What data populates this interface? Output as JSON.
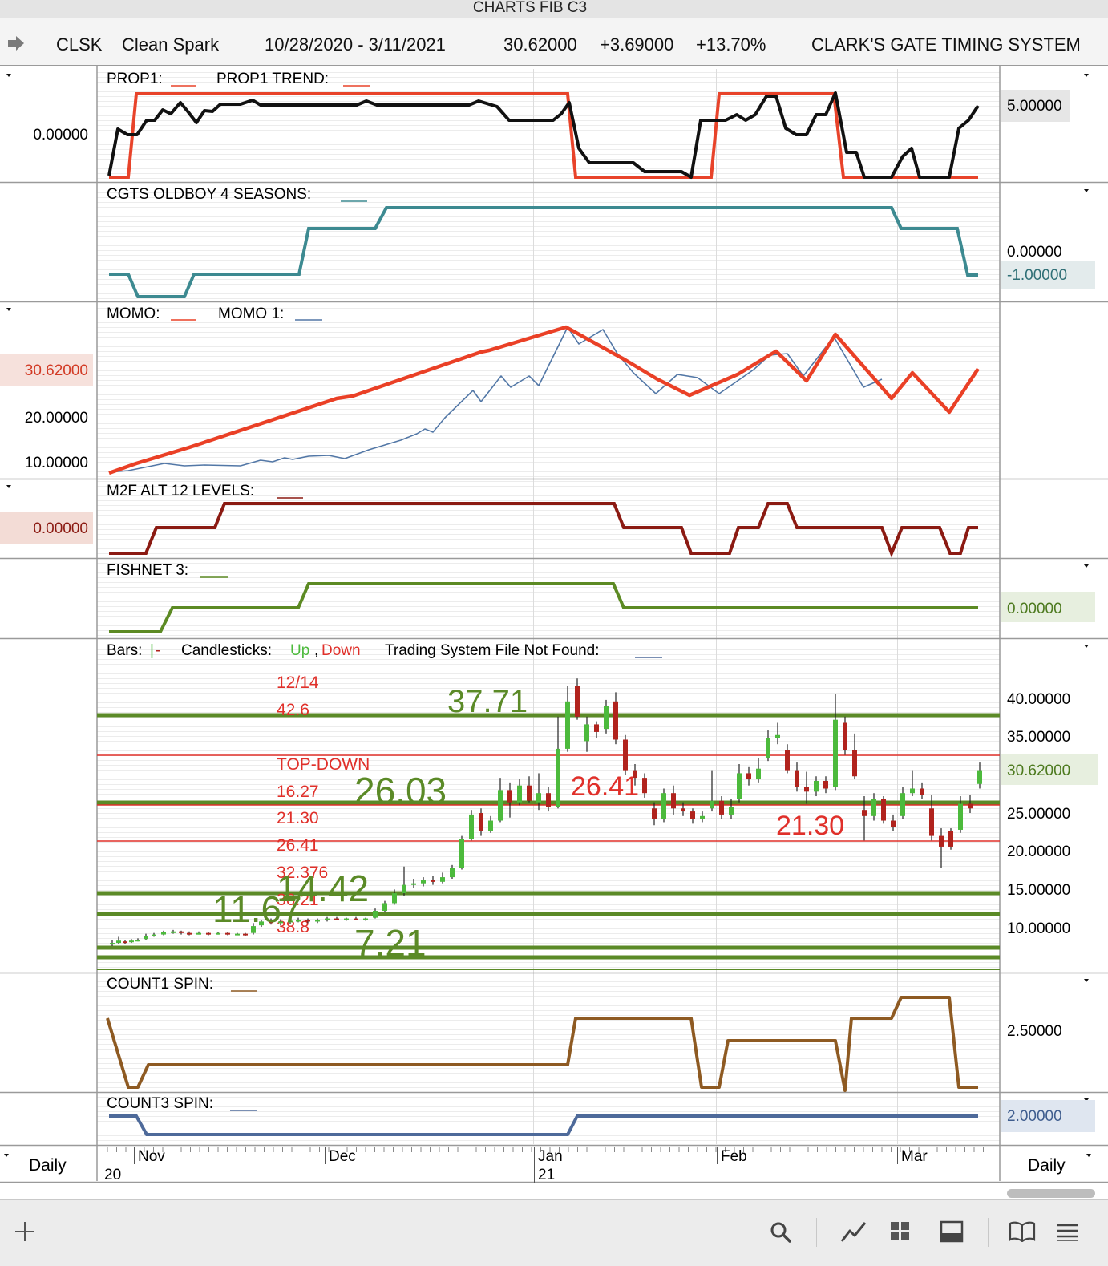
{
  "window": {
    "title": "CHARTS FIB C3"
  },
  "header": {
    "symbol": "CLSK",
    "name": "Clean Spark",
    "date_range": "10/28/2020 - 3/11/2021",
    "last": "30.62000",
    "change": "+3.69000",
    "change_pct": "+13.70%",
    "system": "CLARK'S GATE TIMING SYSTEM"
  },
  "panels": {
    "prop1": {
      "legend1": "PROP1:",
      "legend2": "PROP1 TREND:",
      "left_value": "0.00000",
      "right_values": [
        "5.00000"
      ],
      "colors": {
        "prop1": "#e8432a",
        "trend": "#111111"
      }
    },
    "cgts": {
      "legend1": "CGTS OLDBOY 4 SEASONS:",
      "right_values": [
        "0.00000",
        "-1.00000"
      ],
      "colors": {
        "line": "#3d8a91"
      }
    },
    "momo": {
      "legend1": "MOMO:",
      "legend2": "MOMO 1:",
      "left_values": [
        "30.62000",
        "20.00000",
        "10.00000"
      ],
      "colors": {
        "momo": "#ea4026",
        "momo1": "#5277a6"
      }
    },
    "m2f": {
      "legend1": "M2F ALT 12 LEVELS:",
      "left_value": "0.00000",
      "colors": {
        "line": "#8b1a12"
      }
    },
    "fishnet": {
      "legend1": "FISHNET 3:",
      "right_value": "0.00000",
      "colors": {
        "line": "#5c8a23"
      }
    },
    "price": {
      "legend_bars": "Bars:",
      "legend_candles": "Candlesticks:",
      "legend_up": "Up",
      "legend_down": "Down",
      "legend_system": "Trading System File Not Found:",
      "right_values": [
        "40.00000",
        "35.00000",
        "30.62000",
        "25.00000",
        "20.00000",
        "15.00000",
        "10.00000"
      ],
      "green_levels": [
        "37.71",
        "26.03",
        "14.42",
        "11.67",
        "7.21"
      ],
      "red_levels": [
        "26.41",
        "21.30"
      ],
      "red_text_block": [
        "12/14",
        "42.6",
        "TOP-DOWN",
        "16.27",
        "21.30",
        "26.41",
        "32.376",
        "36.21",
        "38.8"
      ],
      "colors": {
        "green": "#5b8a27",
        "red": "#e0302a",
        "up": "#4cba3c",
        "down": "#b1231d"
      }
    },
    "count1": {
      "legend1": "COUNT1 SPIN:",
      "right_value": "2.50000",
      "colors": {
        "line": "#8e5a22"
      }
    },
    "count3": {
      "legend1": "COUNT3 SPIN:",
      "right_value": "2.00000",
      "colors": {
        "line": "#4e6a9a"
      }
    }
  },
  "xaxis": {
    "months": [
      "Nov",
      "Dec",
      "Jan",
      "Feb",
      "Mar"
    ],
    "years": [
      "20",
      "21"
    ]
  },
  "footer": {
    "left_period": "Daily",
    "right_period": "Daily"
  },
  "toolbar": {
    "icons": [
      "add-icon",
      "search-icon",
      "line-chart-icon",
      "grid-icon",
      "panel-icon",
      "book-icon",
      "menu-icon"
    ]
  }
}
